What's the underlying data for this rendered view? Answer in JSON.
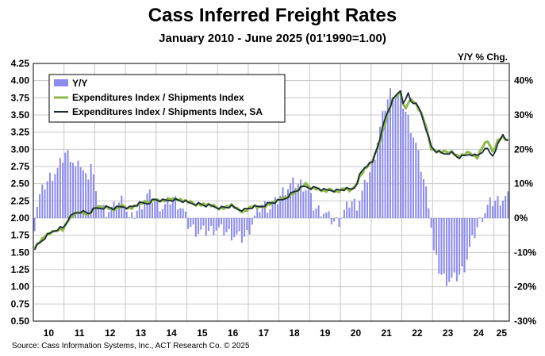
{
  "header": {
    "title": "Cass Inferred Freight Rates",
    "subtitle": "January 2010 - June 2025 (01'1990=1.00)"
  },
  "footer": {
    "source": "Source: Cass Information Systems, Inc., ACT Research Co. © 2025"
  },
  "colors": {
    "bars": "#8c8cf0",
    "nsa": "#8fb84a",
    "sa": "#1c2b3a",
    "grid": "#c8c8c8"
  },
  "chart_data": {
    "type": "line",
    "title": "Cass Inferred Freight Rates",
    "subtitle": "January 2010 - June 2025 (01'1990=1.00)",
    "y_right_label": "Y/Y % Chg.",
    "x_tick_labels": [
      "10",
      "11",
      "12",
      "13",
      "14",
      "15",
      "16",
      "17",
      "18",
      "19",
      "20",
      "21",
      "22",
      "23",
      "24",
      "25"
    ],
    "y_left_ticks": [
      "4.25",
      "4.00",
      "3.75",
      "3.50",
      "3.25",
      "3.00",
      "2.75",
      "2.50",
      "2.25",
      "2.00",
      "1.75",
      "1.50",
      "1.25",
      "1.00",
      "0.75",
      "0.50"
    ],
    "y_right_ticks": [
      "40%",
      "30%",
      "20%",
      "10%",
      "0%",
      "-10%",
      "-20%",
      "-30%"
    ],
    "ylim_left": [
      0.5,
      4.25
    ],
    "ylim_right": [
      -30,
      45
    ],
    "xlim_months": [
      "2010-01",
      "2025-06"
    ],
    "grid": true,
    "legend_position": "top-left",
    "series": [
      {
        "name": "Y/Y",
        "type": "bar",
        "axis": "right",
        "months": [
          "2010-01",
          "2025-06"
        ],
        "anchors": [
          [
            2010.0,
            -2
          ],
          [
            2010.1,
            5
          ],
          [
            2010.3,
            9
          ],
          [
            2010.5,
            12
          ],
          [
            2010.75,
            14
          ],
          [
            2011.0,
            19
          ],
          [
            2011.2,
            18
          ],
          [
            2011.35,
            14
          ],
          [
            2011.5,
            16
          ],
          [
            2011.7,
            11
          ],
          [
            2011.85,
            17
          ],
          [
            2012.0,
            6
          ],
          [
            2012.3,
            2
          ],
          [
            2012.6,
            3
          ],
          [
            2012.9,
            6
          ],
          [
            2013.1,
            -1
          ],
          [
            2013.4,
            3
          ],
          [
            2013.7,
            7
          ],
          [
            2013.9,
            5
          ],
          [
            2014.2,
            3
          ],
          [
            2014.5,
            6
          ],
          [
            2014.8,
            3
          ],
          [
            2015.0,
            -2
          ],
          [
            2015.3,
            -4
          ],
          [
            2015.6,
            -4
          ],
          [
            2015.9,
            -3
          ],
          [
            2016.2,
            -4
          ],
          [
            2016.5,
            -5
          ],
          [
            2016.75,
            -6
          ],
          [
            2016.9,
            -5
          ],
          [
            2017.1,
            -1
          ],
          [
            2017.4,
            4
          ],
          [
            2017.7,
            3
          ],
          [
            2017.9,
            5
          ],
          [
            2018.1,
            8
          ],
          [
            2018.4,
            10
          ],
          [
            2018.7,
            10
          ],
          [
            2018.9,
            8
          ],
          [
            2019.1,
            3
          ],
          [
            2019.4,
            2
          ],
          [
            2019.7,
            -1
          ],
          [
            2019.9,
            -1
          ],
          [
            2020.1,
            2
          ],
          [
            2020.3,
            5
          ],
          [
            2020.5,
            4
          ],
          [
            2020.7,
            8
          ],
          [
            2020.85,
            12
          ],
          [
            2021.0,
            15
          ],
          [
            2021.2,
            24
          ],
          [
            2021.4,
            32
          ],
          [
            2021.6,
            37
          ],
          [
            2021.8,
            36
          ],
          [
            2022.0,
            33
          ],
          [
            2022.2,
            28
          ],
          [
            2022.4,
            22
          ],
          [
            2022.55,
            16
          ],
          [
            2022.7,
            10
          ],
          [
            2022.85,
            4
          ],
          [
            2023.0,
            -10
          ],
          [
            2023.2,
            -16
          ],
          [
            2023.4,
            -18
          ],
          [
            2023.6,
            -18
          ],
          [
            2023.8,
            -17
          ],
          [
            2024.0,
            -14
          ],
          [
            2024.2,
            -8
          ],
          [
            2024.4,
            -3
          ],
          [
            2024.6,
            1
          ],
          [
            2024.8,
            4
          ],
          [
            2025.0,
            5
          ],
          [
            2025.4,
            6
          ]
        ]
      },
      {
        "name": "Expenditures Index / Shipments Index",
        "type": "line",
        "axis": "left",
        "anchors": [
          [
            2010.0,
            1.58
          ],
          [
            2010.15,
            1.65
          ],
          [
            2010.35,
            1.74
          ],
          [
            2010.55,
            1.78
          ],
          [
            2010.8,
            1.85
          ],
          [
            2010.95,
            1.83
          ],
          [
            2011.05,
            1.95
          ],
          [
            2011.3,
            2.05
          ],
          [
            2011.5,
            2.1
          ],
          [
            2011.75,
            2.05
          ],
          [
            2011.95,
            2.14
          ],
          [
            2012.3,
            2.17
          ],
          [
            2012.6,
            2.12
          ],
          [
            2012.9,
            2.18
          ],
          [
            2013.1,
            2.14
          ],
          [
            2013.4,
            2.2
          ],
          [
            2013.7,
            2.24
          ],
          [
            2013.9,
            2.27
          ],
          [
            2014.2,
            2.24
          ],
          [
            2014.5,
            2.29
          ],
          [
            2014.8,
            2.26
          ],
          [
            2015.0,
            2.23
          ],
          [
            2015.3,
            2.2
          ],
          [
            2015.6,
            2.2
          ],
          [
            2015.8,
            2.17
          ],
          [
            2016.1,
            2.14
          ],
          [
            2016.4,
            2.19
          ],
          [
            2016.6,
            2.12
          ],
          [
            2016.85,
            2.1
          ],
          [
            2017.1,
            2.18
          ],
          [
            2017.3,
            2.14
          ],
          [
            2017.6,
            2.2
          ],
          [
            2017.9,
            2.25
          ],
          [
            2018.1,
            2.28
          ],
          [
            2018.4,
            2.36
          ],
          [
            2018.6,
            2.41
          ],
          [
            2018.8,
            2.49
          ],
          [
            2019.0,
            2.45
          ],
          [
            2019.2,
            2.43
          ],
          [
            2019.45,
            2.38
          ],
          [
            2019.7,
            2.42
          ],
          [
            2019.85,
            2.38
          ],
          [
            2020.1,
            2.44
          ],
          [
            2020.3,
            2.38
          ],
          [
            2020.45,
            2.48
          ],
          [
            2020.6,
            2.62
          ],
          [
            2020.8,
            2.74
          ],
          [
            2021.0,
            2.82
          ],
          [
            2021.2,
            3.05
          ],
          [
            2021.45,
            3.45
          ],
          [
            2021.65,
            3.72
          ],
          [
            2021.8,
            3.78
          ],
          [
            2021.95,
            3.82
          ],
          [
            2022.05,
            3.55
          ],
          [
            2022.2,
            3.73
          ],
          [
            2022.35,
            3.7
          ],
          [
            2022.55,
            3.55
          ],
          [
            2022.75,
            3.35
          ],
          [
            2022.9,
            3.02
          ],
          [
            2023.05,
            2.97
          ],
          [
            2023.3,
            2.95
          ],
          [
            2023.55,
            2.98
          ],
          [
            2023.8,
            2.89
          ],
          [
            2024.0,
            2.92
          ],
          [
            2024.2,
            2.96
          ],
          [
            2024.4,
            2.87
          ],
          [
            2024.6,
            3.05
          ],
          [
            2024.75,
            3.12
          ],
          [
            2024.9,
            2.95
          ],
          [
            2025.1,
            3.15
          ],
          [
            2025.25,
            3.18
          ],
          [
            2025.42,
            3.12
          ]
        ]
      },
      {
        "name": "Expenditures Index / Shipments Index, SA",
        "type": "line",
        "axis": "left",
        "anchors": [
          [
            2010.0,
            1.56
          ],
          [
            2010.15,
            1.63
          ],
          [
            2010.35,
            1.72
          ],
          [
            2010.55,
            1.79
          ],
          [
            2010.8,
            1.86
          ],
          [
            2010.95,
            1.85
          ],
          [
            2011.05,
            1.96
          ],
          [
            2011.3,
            2.07
          ],
          [
            2011.5,
            2.1
          ],
          [
            2011.75,
            2.07
          ],
          [
            2011.95,
            2.13
          ],
          [
            2012.3,
            2.16
          ],
          [
            2012.6,
            2.14
          ],
          [
            2012.9,
            2.17
          ],
          [
            2013.1,
            2.15
          ],
          [
            2013.4,
            2.21
          ],
          [
            2013.7,
            2.22
          ],
          [
            2013.9,
            2.27
          ],
          [
            2014.2,
            2.25
          ],
          [
            2014.5,
            2.27
          ],
          [
            2014.8,
            2.25
          ],
          [
            2015.0,
            2.22
          ],
          [
            2015.3,
            2.21
          ],
          [
            2015.6,
            2.18
          ],
          [
            2015.8,
            2.17
          ],
          [
            2016.1,
            2.15
          ],
          [
            2016.4,
            2.17
          ],
          [
            2016.6,
            2.13
          ],
          [
            2016.85,
            2.12
          ],
          [
            2017.1,
            2.16
          ],
          [
            2017.3,
            2.16
          ],
          [
            2017.6,
            2.21
          ],
          [
            2017.9,
            2.24
          ],
          [
            2018.1,
            2.27
          ],
          [
            2018.4,
            2.37
          ],
          [
            2018.6,
            2.42
          ],
          [
            2018.8,
            2.46
          ],
          [
            2019.0,
            2.44
          ],
          [
            2019.2,
            2.44
          ],
          [
            2019.45,
            2.4
          ],
          [
            2019.7,
            2.41
          ],
          [
            2019.85,
            2.4
          ],
          [
            2020.1,
            2.42
          ],
          [
            2020.3,
            2.41
          ],
          [
            2020.45,
            2.46
          ],
          [
            2020.6,
            2.64
          ],
          [
            2020.8,
            2.77
          ],
          [
            2021.0,
            2.8
          ],
          [
            2021.2,
            3.1
          ],
          [
            2021.45,
            3.5
          ],
          [
            2021.65,
            3.7
          ],
          [
            2021.8,
            3.8
          ],
          [
            2021.95,
            3.88
          ],
          [
            2022.05,
            3.5
          ],
          [
            2022.12,
            3.95
          ],
          [
            2022.2,
            3.72
          ],
          [
            2022.35,
            3.68
          ],
          [
            2022.55,
            3.58
          ],
          [
            2022.75,
            3.3
          ],
          [
            2022.9,
            3.05
          ],
          [
            2023.05,
            2.98
          ],
          [
            2023.3,
            2.93
          ],
          [
            2023.55,
            2.96
          ],
          [
            2023.8,
            2.88
          ],
          [
            2024.0,
            2.9
          ],
          [
            2024.2,
            2.94
          ],
          [
            2024.4,
            2.9
          ],
          [
            2024.6,
            2.98
          ],
          [
            2024.75,
            3.0
          ],
          [
            2024.9,
            2.9
          ],
          [
            2025.1,
            3.08
          ],
          [
            2025.25,
            3.22
          ],
          [
            2025.42,
            3.1
          ]
        ]
      }
    ]
  }
}
